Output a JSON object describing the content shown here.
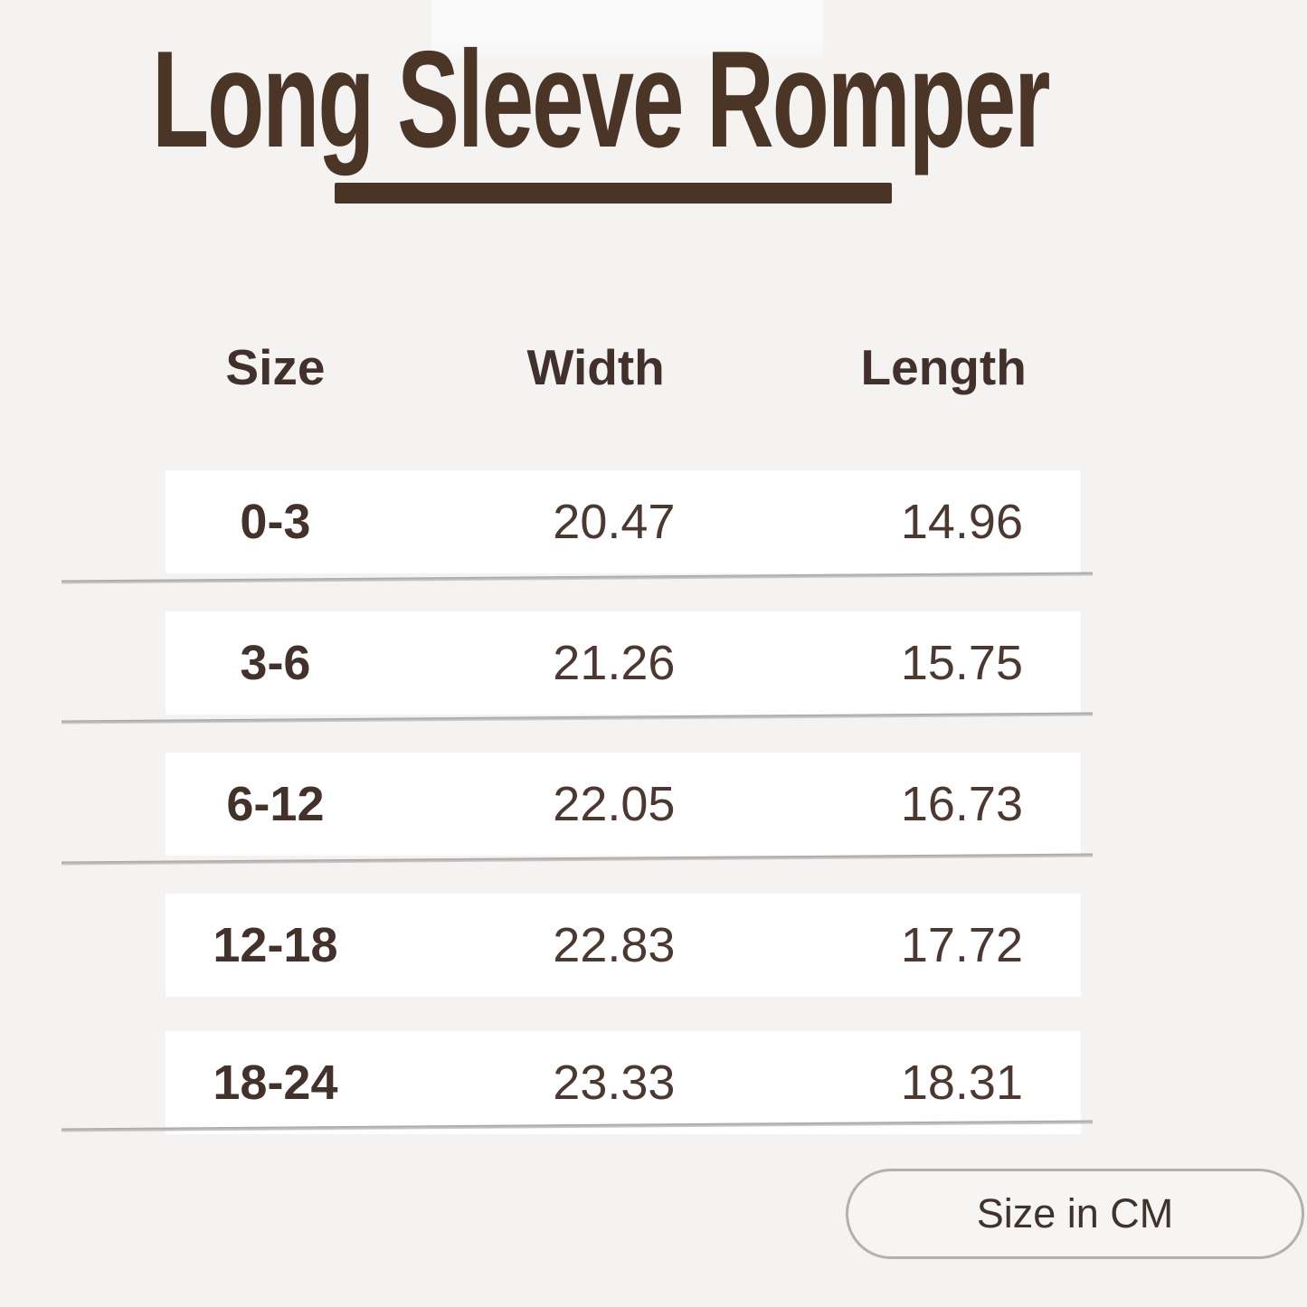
{
  "title": "Long Sleeve Romper",
  "chart_data": {
    "type": "table",
    "title": "Long Sleeve Romper",
    "columns": [
      "Size",
      "Width",
      "Length"
    ],
    "rows": [
      [
        "0-3",
        "20.47",
        "14.96"
      ],
      [
        "3-6",
        "21.26",
        "15.75"
      ],
      [
        "6-12",
        "22.05",
        "16.73"
      ],
      [
        "12-18",
        "22.83",
        "17.72"
      ],
      [
        "18-24",
        "23.33",
        "18.31"
      ]
    ],
    "unit_note": "Size in CM",
    "layout": {
      "row_stripes": true,
      "dividers_after_rows": [
        1,
        2,
        3,
        5
      ]
    }
  },
  "footer": {
    "unit_label": "Size in CM"
  },
  "colors": {
    "background": "#f4f3f2",
    "row_background": "#fffefe",
    "accent_brown": "#4a3526",
    "underline_brown": "#4a3425",
    "header_text": "#41302b",
    "value_text": "#4b3931",
    "divider_gray": "#a5a3a2",
    "pill_border": "#b3b1af"
  }
}
